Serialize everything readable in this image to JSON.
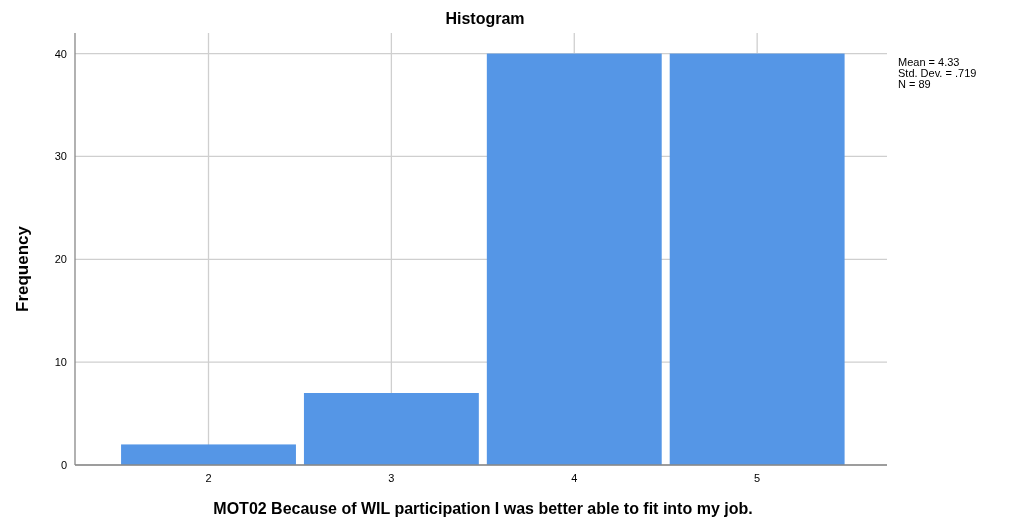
{
  "chart_data": {
    "type": "histogram",
    "title": "Histogram",
    "xlabel": "MOT02  Because of WIL participation I was better able to fit into my job.",
    "ylabel": "Frequency",
    "bins": [
      1.5,
      2.5,
      3.5,
      4.5,
      5.5
    ],
    "values": [
      2,
      7,
      40,
      40
    ],
    "color": "#5596e6",
    "xlim": [
      1.27,
      5.71
    ],
    "xticks": [
      2,
      3,
      4,
      5
    ],
    "ylim": [
      0,
      42
    ],
    "yticks": [
      0,
      10,
      20,
      30,
      40
    ],
    "grid": true,
    "annotations": [
      "Mean = 4.33",
      "Std. Dev. = .719",
      "N = 89"
    ]
  }
}
